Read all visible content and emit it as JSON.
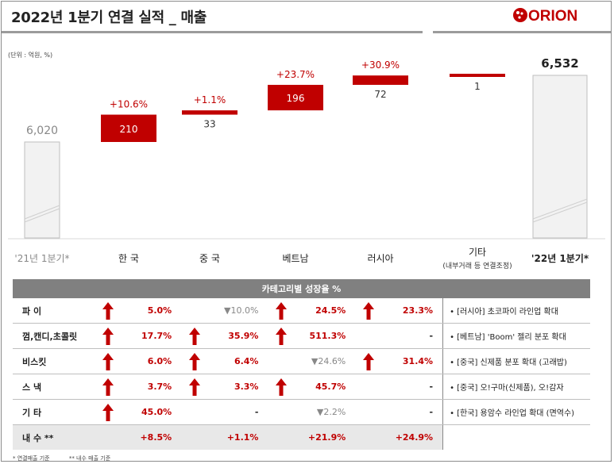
{
  "title": "2022년 1분기 연결 실적 _ 매출",
  "logo": {
    "text": "ORION",
    "name": "orion-logo"
  },
  "unit_note": "(단위 : 억원, %)",
  "colors": {
    "accent": "#c00000",
    "total_bar": "#f2f2f2",
    "total_border": "#bfbfbf",
    "header_bg": "#808080"
  },
  "chart_data": {
    "type": "waterfall",
    "title": "",
    "categories": [
      "'21년 1분기*",
      "한 국",
      "중 국",
      "베트남",
      "러시아",
      "기타",
      "'22년 1분기*"
    ],
    "category_subtitles": [
      "",
      "",
      "",
      "",
      "",
      "(내부거래 등 연결조정)",
      ""
    ],
    "start": {
      "label": "'21년 1분기*",
      "value": 6020,
      "value_label": "6,020"
    },
    "end": {
      "label": "'22년 1분기*",
      "value": 6532,
      "value_label": "6,532"
    },
    "steps": [
      {
        "label": "한 국",
        "value": 210,
        "value_label": "210",
        "growth": "+10.6%"
      },
      {
        "label": "중 국",
        "value": 33,
        "value_label": "33",
        "growth": "+1.1%"
      },
      {
        "label": "베트남",
        "value": 196,
        "value_label": "196",
        "growth": "+23.7%"
      },
      {
        "label": "러시아",
        "value": 72,
        "value_label": "72",
        "growth": "+30.9%"
      },
      {
        "label": "기타",
        "value": 1,
        "value_label": "1",
        "growth": ""
      }
    ],
    "axis_break": true
  },
  "table": {
    "header": "카테고리별 성장율 %",
    "rows": [
      {
        "label": "파 이",
        "cells": [
          {
            "v": "5.0%",
            "dir": "up"
          },
          {
            "v": "▼10.0%",
            "dir": "down"
          },
          {
            "v": "24.5%",
            "dir": "up"
          },
          {
            "v": "23.3%",
            "dir": "up"
          }
        ],
        "note": "•  [러시아] 초코파이 라인업 확대"
      },
      {
        "label": "껌,캔디,초콜릿",
        "cells": [
          {
            "v": "17.7%",
            "dir": "up"
          },
          {
            "v": "35.9%",
            "dir": "up"
          },
          {
            "v": "511.3%",
            "dir": "up"
          },
          {
            "v": "-",
            "dir": "none"
          }
        ],
        "note": "•  [베트남] 'Boom' 젤리 분포 확대"
      },
      {
        "label": "비스킷",
        "cells": [
          {
            "v": "6.0%",
            "dir": "up"
          },
          {
            "v": "6.4%",
            "dir": "up"
          },
          {
            "v": "▼24.6%",
            "dir": "down"
          },
          {
            "v": "31.4%",
            "dir": "up"
          }
        ],
        "note": "•  [중국] 신제품 분포 확대 (고래밥)"
      },
      {
        "label": "스 낵",
        "cells": [
          {
            "v": "3.7%",
            "dir": "up"
          },
          {
            "v": "3.3%",
            "dir": "up"
          },
          {
            "v": "45.7%",
            "dir": "up"
          },
          {
            "v": "-",
            "dir": "none"
          }
        ],
        "note": "•  [중국] 오!구마(신제품), 오!감자"
      },
      {
        "label": "기 타",
        "cells": [
          {
            "v": "45.0%",
            "dir": "up"
          },
          {
            "v": "-",
            "dir": "none"
          },
          {
            "v": "▼2.2%",
            "dir": "down"
          },
          {
            "v": "-",
            "dir": "none"
          }
        ],
        "note": "•  [한국] 용암수 라인업 확대 (면역수)"
      },
      {
        "label": "내 수 **",
        "cells": [
          {
            "v": "+8.5%",
            "dir": "plain"
          },
          {
            "v": "+1.1%",
            "dir": "plain"
          },
          {
            "v": "+21.9%",
            "dir": "plain"
          },
          {
            "v": "+24.9%",
            "dir": "plain"
          }
        ],
        "note": ""
      }
    ]
  },
  "footnotes": [
    "* 연결매출 기준",
    "** 내수 매출 기준"
  ]
}
